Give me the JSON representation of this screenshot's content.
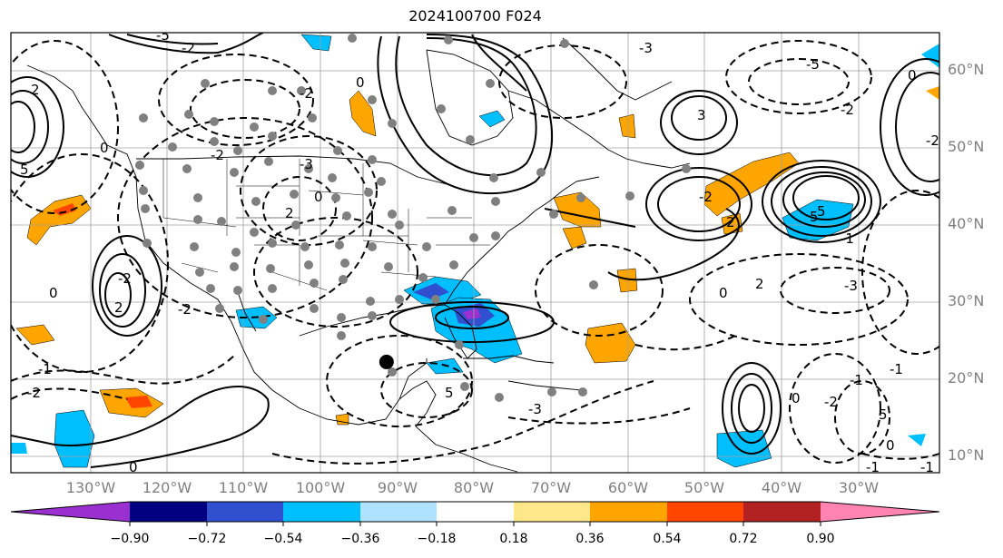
{
  "title": "2024100700 F024",
  "lat_labels": [
    "60°N",
    "50°N",
    "40°N",
    "30°N",
    "20°N",
    "10°N"
  ],
  "lon_labels": [
    "130°W",
    "120°W",
    "110°W",
    "100°W",
    "90°W",
    "80°W",
    "70°W",
    "60°W",
    "50°W",
    "40°W",
    "30°W"
  ],
  "colorbar": {
    "ticks": [
      "−0.90",
      "−0.72",
      "−0.54",
      "−0.36",
      "−0.18",
      "0.18",
      "0.36",
      "0.54",
      "0.72",
      "0.90"
    ],
    "colors": [
      "#9b30d0",
      "#000080",
      "#3050d0",
      "#00bfff",
      "#aee2ff",
      "#ffffff",
      "#ffe88a",
      "#ffa500",
      "#ff4500",
      "#b22222",
      "#ff85b0"
    ]
  },
  "map": {
    "extent": {
      "lon": [
        -135,
        -25
      ],
      "lat": [
        7,
        65
      ]
    },
    "gridlines": true,
    "contour_labels": [
      "5",
      "2",
      "0",
      "-5",
      "-2",
      "0",
      "-2",
      "-3",
      "0",
      "2",
      "3",
      "-2",
      "2",
      "-3",
      "5",
      "-5",
      "-2",
      "-3",
      "-2",
      "0",
      "-2",
      "2",
      "-2",
      "0",
      "-2",
      "0",
      "-1",
      "5",
      "-3",
      "5",
      "-2",
      "-1",
      "2",
      "0",
      "-2",
      "0",
      "-1",
      "-1",
      "0",
      "5",
      "-1",
      "-1"
    ],
    "marker": {
      "lon": -90.5,
      "lat": 21.6
    }
  }
}
